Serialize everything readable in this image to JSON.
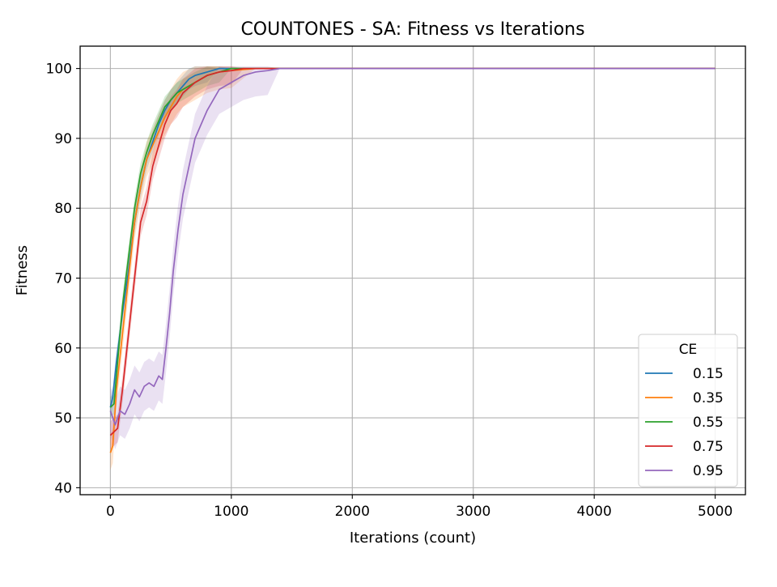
{
  "chart_data": {
    "type": "line",
    "title": "COUNTONES - SA: Fitness vs Iterations",
    "xlabel": "Iterations (count)",
    "ylabel": "Fitness",
    "xlim": [
      -250,
      5250
    ],
    "ylim": [
      39,
      103.2
    ],
    "x_ticks": [
      0,
      1000,
      2000,
      3000,
      4000,
      5000
    ],
    "y_ticks": [
      40,
      50,
      60,
      70,
      80,
      90,
      100
    ],
    "grid": true,
    "legend": {
      "title": "CE",
      "position": "bottom-right"
    },
    "series": [
      {
        "name": "0.15",
        "color": "#1f77b4",
        "points": [
          [
            0,
            51.5
          ],
          [
            20,
            53
          ],
          [
            50,
            58
          ],
          [
            100,
            65
          ],
          [
            150,
            71
          ],
          [
            200,
            78
          ],
          [
            250,
            83
          ],
          [
            300,
            87
          ],
          [
            350,
            89.5
          ],
          [
            400,
            92
          ],
          [
            450,
            94
          ],
          [
            500,
            95.5
          ],
          [
            550,
            96.5
          ],
          [
            600,
            97.5
          ],
          [
            650,
            98.5
          ],
          [
            700,
            99
          ],
          [
            800,
            99.5
          ],
          [
            900,
            100
          ],
          [
            5000,
            100
          ]
        ],
        "band": 1.5
      },
      {
        "name": "0.35",
        "color": "#ff7f0e",
        "points": [
          [
            0,
            45
          ],
          [
            20,
            46
          ],
          [
            50,
            54
          ],
          [
            100,
            62
          ],
          [
            150,
            70
          ],
          [
            200,
            78
          ],
          [
            250,
            83
          ],
          [
            300,
            87
          ],
          [
            350,
            89
          ],
          [
            400,
            91
          ],
          [
            450,
            93
          ],
          [
            500,
            94.5
          ],
          [
            550,
            96
          ],
          [
            600,
            97
          ],
          [
            700,
            98
          ],
          [
            800,
            99
          ],
          [
            900,
            99.5
          ],
          [
            1000,
            99.7
          ],
          [
            1200,
            100
          ],
          [
            5000,
            100
          ]
        ],
        "band": 2.5
      },
      {
        "name": "0.55",
        "color": "#2ca02c",
        "points": [
          [
            0,
            51.5
          ],
          [
            30,
            52
          ],
          [
            60,
            58
          ],
          [
            100,
            66
          ],
          [
            150,
            73
          ],
          [
            200,
            80
          ],
          [
            250,
            85
          ],
          [
            300,
            88
          ],
          [
            350,
            90.5
          ],
          [
            400,
            92.5
          ],
          [
            450,
            94.5
          ],
          [
            500,
            95.5
          ],
          [
            550,
            96.5
          ],
          [
            600,
            97
          ],
          [
            700,
            98
          ],
          [
            800,
            99
          ],
          [
            900,
            99.5
          ],
          [
            1000,
            100
          ],
          [
            5000,
            100
          ]
        ],
        "band": 1.5
      },
      {
        "name": "0.75",
        "color": "#d62728",
        "points": [
          [
            0,
            47.5
          ],
          [
            30,
            48
          ],
          [
            60,
            48.5
          ],
          [
            100,
            54
          ],
          [
            150,
            62
          ],
          [
            200,
            70
          ],
          [
            250,
            78
          ],
          [
            300,
            81
          ],
          [
            350,
            86
          ],
          [
            400,
            89
          ],
          [
            450,
            92
          ],
          [
            500,
            94
          ],
          [
            550,
            95
          ],
          [
            600,
            96.5
          ],
          [
            700,
            98
          ],
          [
            800,
            99
          ],
          [
            900,
            99.5
          ],
          [
            1000,
            99.7
          ],
          [
            1100,
            100
          ],
          [
            5000,
            100
          ]
        ],
        "band": 2
      },
      {
        "name": "0.95",
        "color": "#9467bd",
        "points": [
          [
            0,
            51
          ],
          [
            40,
            49
          ],
          [
            80,
            51
          ],
          [
            120,
            50.5
          ],
          [
            160,
            52
          ],
          [
            200,
            54
          ],
          [
            240,
            53
          ],
          [
            280,
            54.5
          ],
          [
            320,
            55
          ],
          [
            360,
            54.5
          ],
          [
            400,
            56
          ],
          [
            430,
            55.5
          ],
          [
            460,
            60
          ],
          [
            490,
            65
          ],
          [
            520,
            71
          ],
          [
            560,
            77
          ],
          [
            600,
            82
          ],
          [
            650,
            86
          ],
          [
            700,
            90
          ],
          [
            750,
            92
          ],
          [
            800,
            94
          ],
          [
            850,
            95.5
          ],
          [
            900,
            97
          ],
          [
            1000,
            98
          ],
          [
            1100,
            99
          ],
          [
            1200,
            99.5
          ],
          [
            1300,
            99.7
          ],
          [
            1400,
            100
          ],
          [
            5000,
            100
          ]
        ],
        "band": 3.5
      }
    ]
  }
}
